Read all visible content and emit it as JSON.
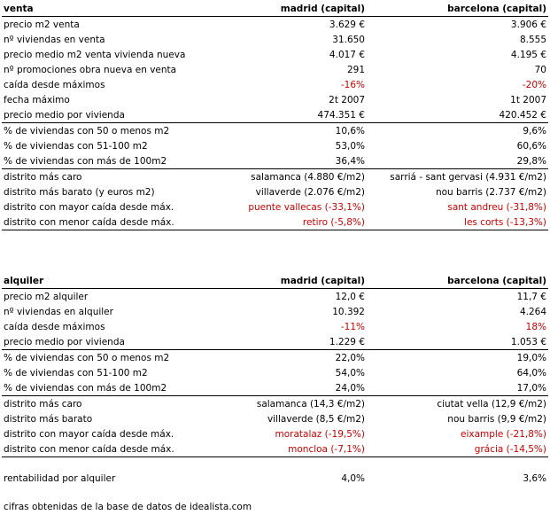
{
  "tables": [
    {
      "header": [
        "venta",
        "madrid (capital)",
        "barcelona (capital)"
      ],
      "groups": [
        [
          {
            "cells": [
              "precio m2 venta",
              "3.629 €",
              "3.906 €"
            ]
          },
          {
            "cells": [
              "nº viviendas en venta",
              "31.650",
              "8.555"
            ]
          },
          {
            "cells": [
              "precio medio m2 venta vivienda nueva",
              "4.017 €",
              "4.195 €"
            ]
          },
          {
            "cells": [
              "nº promociones obra nueva en venta",
              "291",
              "70"
            ]
          },
          {
            "cells": [
              "caída desde máximos",
              "-16%",
              "-20%"
            ],
            "color": "#cc0000"
          },
          {
            "cells": [
              "fecha máximo",
              "2t 2007",
              "1t 2007"
            ]
          },
          {
            "cells": [
              "precio medio por vivienda",
              "474.351 €",
              "420.452 €"
            ]
          }
        ],
        [
          {
            "cells": [
              "% de viviendas con 50 o menos m2",
              "10,6%",
              "9,6%"
            ]
          },
          {
            "cells": [
              "% de viviendas con 51-100 m2",
              "53,0%",
              "60,6%"
            ]
          },
          {
            "cells": [
              "% de viviendas con más de 100m2",
              "36,4%",
              "29,8%"
            ]
          }
        ],
        [
          {
            "cells": [
              "distrito más caro",
              "salamanca (4.880 €/m2)",
              "sarriá - sant gervasi (4.931 €/m2)"
            ]
          },
          {
            "cells": [
              "distrito más barato (y euros m2)",
              "villaverde (2.076 €/m2)",
              "nou barris (2.737 €/m2)"
            ]
          },
          {
            "cells": [
              "distrito con mayor caída desde máx.",
              "puente vallecas (-33,1%)",
              "sant andreu (-31,8%)"
            ],
            "color": "#cc0000"
          },
          {
            "cells": [
              "distrito con menor caída desde máx.",
              "retiro (-5,8%)",
              "les corts (-13,3%)"
            ],
            "color": "#cc0000"
          }
        ]
      ]
    },
    {
      "header": [
        "alquiler",
        "madrid (capital)",
        "barcelona (capital)"
      ],
      "groups": [
        [
          {
            "cells": [
              "precio m2 alquiler",
              "12,0 €",
              "11,7 €"
            ]
          },
          {
            "cells": [
              "nº viviendas en alquiler",
              "10.392",
              "4.264"
            ]
          },
          {
            "cells": [
              "caída desde máximos",
              "-11%",
              "18%"
            ],
            "color": "#cc0000"
          },
          {
            "cells": [
              "precio medio por vivienda",
              "1.229 €",
              "1.053 €"
            ]
          }
        ],
        [
          {
            "cells": [
              "% de viviendas con 50 o menos m2",
              "22,0%",
              "19,0%"
            ]
          },
          {
            "cells": [
              "% de viviendas con 51-100 m2",
              "54,0%",
              "64,0%"
            ]
          },
          {
            "cells": [
              "% de viviendas con más de 100m2",
              "24,0%",
              "17,0%"
            ]
          }
        ],
        [
          {
            "cells": [
              "distrito más caro",
              "salamanca (14,3 €/m2)",
              "ciutat vella (12,9 €/m2)"
            ]
          },
          {
            "cells": [
              "distrito más barato",
              "villaverde (8,5 €/m2)",
              "nou barris (9,9 €/m2)"
            ]
          },
          {
            "cells": [
              "distrito con mayor caída desde máx.",
              "moratalaz (-19,5%)",
              "eixample (-21,8%)"
            ],
            "color": "#cc0000"
          },
          {
            "cells": [
              "distrito con menor caída desde máx.",
              "moncloa (-7,1%)",
              "grácia (-14,5%)"
            ],
            "color": "#cc0000"
          }
        ]
      ]
    }
  ],
  "extra": {
    "cells": [
      "rentabilidad por alquiler",
      "4,0%",
      "3,6%"
    ]
  },
  "footer": "cifras obtenidas de la base de datos de idealista.com"
}
